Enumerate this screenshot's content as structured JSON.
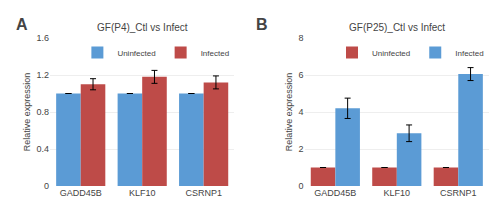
{
  "chart_data": [
    {
      "type": "bar",
      "title": "GF(P4)_Ctl vs Infect",
      "annotations": [
        "A"
      ],
      "categories": [
        "GADD45B",
        "KLF10",
        "CSRNP1"
      ],
      "series": [
        {
          "name": "Uninfected",
          "color": "#5B9BD5",
          "values": [
            1.0,
            1.0,
            1.0
          ],
          "errors": [
            0.0,
            0.0,
            0.0
          ]
        },
        {
          "name": "Infected",
          "color": "#BE4B48",
          "values": [
            1.1,
            1.18,
            1.12
          ],
          "errors": [
            0.06,
            0.07,
            0.07
          ]
        }
      ],
      "ylabel": "Relative expression",
      "ylim": [
        0,
        1.6
      ],
      "yticks": [
        0,
        0.4,
        0.8,
        1.2,
        1.6
      ],
      "grid": true,
      "legend": "upper right"
    },
    {
      "type": "bar",
      "title": "GF(P25)_Ctl vs Infect",
      "annotations": [
        "B"
      ],
      "categories": [
        "GADD45B",
        "KLF10",
        "CSRNP1"
      ],
      "series": [
        {
          "name": "Uninfected",
          "color": "#BE4B48",
          "values": [
            1.0,
            1.0,
            1.0
          ],
          "errors": [
            0.0,
            0.0,
            0.0
          ]
        },
        {
          "name": "Infected",
          "color": "#5B9BD5",
          "values": [
            4.2,
            2.85,
            6.05
          ],
          "errors": [
            0.55,
            0.45,
            0.35
          ]
        }
      ],
      "ylabel": "Relative expression",
      "ylim": [
        0,
        8
      ],
      "yticks": [
        0,
        2,
        4,
        6,
        8
      ],
      "grid": true,
      "legend": "upper right"
    }
  ]
}
